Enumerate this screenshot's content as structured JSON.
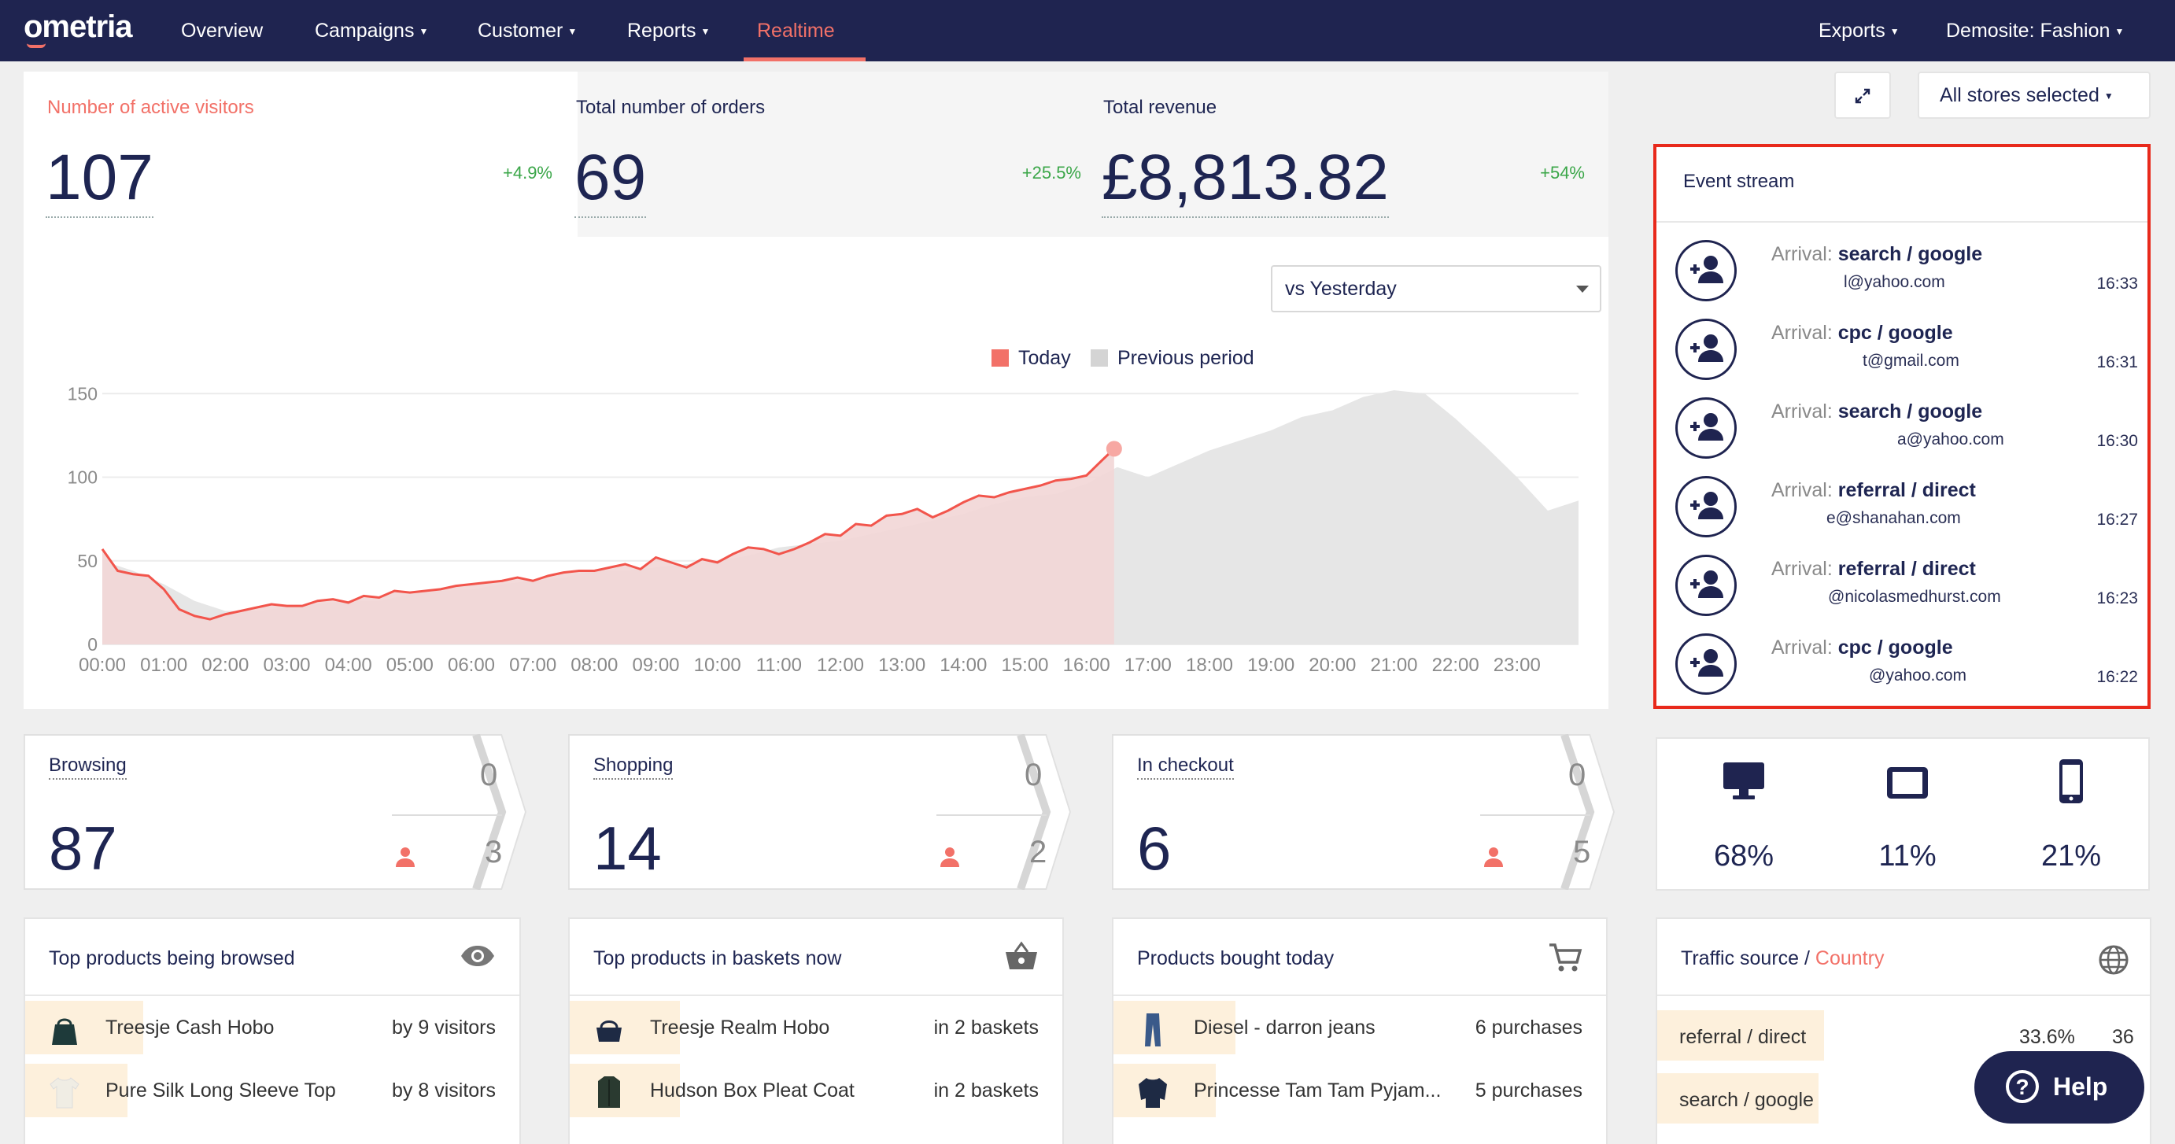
{
  "nav": {
    "logo": "ometria",
    "items": [
      {
        "label": "Overview",
        "caret": false,
        "active": false
      },
      {
        "label": "Campaigns",
        "caret": true,
        "active": false
      },
      {
        "label": "Customer",
        "caret": true,
        "active": false
      },
      {
        "label": "Reports",
        "caret": true,
        "active": false
      },
      {
        "label": "Realtime",
        "caret": false,
        "active": true
      }
    ],
    "right": [
      {
        "label": "Exports",
        "caret": true
      },
      {
        "label": "Demosite: Fashion",
        "caret": true
      }
    ]
  },
  "kpis": [
    {
      "label": "Number of active visitors",
      "value": "107",
      "delta": "+4.9%"
    },
    {
      "label": "Total number of orders",
      "value": "69",
      "delta": "+25.5%"
    },
    {
      "label": "Total revenue",
      "value": "£8,813.82",
      "delta": "+54%"
    }
  ],
  "legend": {
    "today": "Today",
    "previous": "Previous period"
  },
  "compare_select": {
    "value": "vs Yesterday"
  },
  "stores_select": {
    "label": "All stores selected"
  },
  "colors": {
    "nav": "#1f2450",
    "accent": "#f27168",
    "positive": "#3aa648",
    "today_fill": "#f2d6d6",
    "today_line": "#f2554c",
    "previous_fill": "#e6e6e6",
    "event_border": "#e8291b"
  },
  "chart_data": {
    "type": "area",
    "x_ticks": [
      "00:00",
      "01:00",
      "02:00",
      "03:00",
      "04:00",
      "05:00",
      "06:00",
      "07:00",
      "08:00",
      "09:00",
      "10:00",
      "11:00",
      "12:00",
      "13:00",
      "14:00",
      "15:00",
      "16:00",
      "17:00",
      "18:00",
      "19:00",
      "20:00",
      "21:00",
      "22:00",
      "23:00"
    ],
    "y_ticks": [
      0,
      50,
      100,
      150
    ],
    "ylim": [
      0,
      160
    ],
    "xlim": [
      0,
      24
    ],
    "series": [
      {
        "name": "Today",
        "x": [
          0,
          0.25,
          0.5,
          0.75,
          1,
          1.25,
          1.5,
          1.75,
          2,
          2.25,
          2.5,
          2.75,
          3,
          3.25,
          3.5,
          3.75,
          4,
          4.25,
          4.5,
          4.75,
          5,
          5.25,
          5.5,
          5.75,
          6,
          6.25,
          6.5,
          6.75,
          7,
          7.25,
          7.5,
          7.75,
          8,
          8.25,
          8.5,
          8.75,
          9,
          9.25,
          9.5,
          9.75,
          10,
          10.25,
          10.5,
          10.75,
          11,
          11.25,
          11.5,
          11.75,
          12,
          12.25,
          12.5,
          12.75,
          13,
          13.25,
          13.5,
          13.75,
          14,
          14.25,
          14.5,
          14.75,
          15,
          15.25,
          15.5,
          15.75,
          16,
          16.25,
          16.45
        ],
        "values": [
          57,
          44,
          42,
          41,
          33,
          21,
          17,
          15,
          18,
          20,
          22,
          24,
          23,
          23,
          26,
          27,
          25,
          29,
          28,
          32,
          31,
          32,
          33,
          35,
          36,
          37,
          38,
          40,
          38,
          41,
          43,
          44,
          44,
          46,
          48,
          45,
          52,
          49,
          46,
          51,
          49,
          54,
          58,
          57,
          54,
          57,
          61,
          66,
          65,
          72,
          71,
          77,
          78,
          81,
          76,
          80,
          85,
          89,
          88,
          91,
          93,
          95,
          98,
          99,
          101,
          110,
          117
        ]
      },
      {
        "name": "Previous period",
        "x": [
          0,
          0.5,
          1,
          1.5,
          2,
          2.5,
          3,
          3.5,
          4,
          4.5,
          5,
          5.5,
          6,
          6.5,
          7,
          7.5,
          8,
          8.5,
          9,
          9.5,
          10,
          10.5,
          11,
          11.5,
          12,
          12.5,
          13,
          13.5,
          14,
          14.5,
          15,
          15.5,
          16,
          16.5,
          17,
          17.5,
          18,
          18.5,
          19,
          19.5,
          20,
          20.5,
          21,
          21.5,
          22,
          22.5,
          23,
          23.5,
          24
        ],
        "values": [
          50,
          44,
          36,
          26,
          20,
          20,
          22,
          24,
          26,
          26,
          30,
          32,
          33,
          36,
          38,
          40,
          44,
          44,
          46,
          48,
          50,
          53,
          58,
          60,
          62,
          66,
          70,
          74,
          78,
          84,
          88,
          90,
          96,
          106,
          100,
          108,
          116,
          122,
          128,
          136,
          140,
          148,
          152,
          150,
          135,
          118,
          100,
          80,
          86
        ]
      }
    ]
  },
  "event_stream": {
    "title": "Event stream",
    "prefix": "Arrival:",
    "events": [
      {
        "source": "search / google",
        "email": "l@yahoo.com",
        "time": "16:33"
      },
      {
        "source": "cpc / google",
        "email": "t@gmail.com",
        "time": "16:31"
      },
      {
        "source": "search / google",
        "email": "a@yahoo.com",
        "time": "16:30"
      },
      {
        "source": "referral / direct",
        "email": "e@shanahan.com",
        "time": "16:27"
      },
      {
        "source": "referral / direct",
        "email": "@nicolasmedhurst.com",
        "time": "16:23"
      },
      {
        "source": "cpc / google",
        "email": "@yahoo.com",
        "time": "16:22"
      }
    ]
  },
  "stages": [
    {
      "label": "Browsing",
      "value": "87",
      "zero": "0",
      "count": "3"
    },
    {
      "label": "Shopping",
      "value": "14",
      "zero": "0",
      "count": "2"
    },
    {
      "label": "In checkout",
      "value": "6",
      "zero": "0",
      "count": "5"
    }
  ],
  "devices": [
    {
      "icon": "desktop-icon",
      "pct": "68%"
    },
    {
      "icon": "tablet-icon",
      "pct": "11%"
    },
    {
      "icon": "mobile-icon",
      "pct": "21%"
    }
  ],
  "top_browsed": {
    "title": "Top products being browsed",
    "items": [
      {
        "name": "Treesje Cash Hobo",
        "meta": "by 9 visitors"
      },
      {
        "name": "Pure Silk Long Sleeve Top",
        "meta": "by 8 visitors"
      }
    ]
  },
  "top_baskets": {
    "title": "Top products in baskets now",
    "items": [
      {
        "name": "Treesje Realm Hobo",
        "meta": "in 2 baskets"
      },
      {
        "name": "Hudson Box Pleat Coat",
        "meta": "in 2 baskets"
      }
    ]
  },
  "bought_today": {
    "title": "Products bought today",
    "items": [
      {
        "name": "Diesel - darron jeans",
        "meta": "6 purchases"
      },
      {
        "name": "Princesse Tam Tam Pyjam...",
        "meta": "5 purchases"
      }
    ]
  },
  "traffic": {
    "title": "Traffic source /",
    "title_accent": "Country",
    "items": [
      {
        "name": "referral / direct",
        "pct": "33.6%",
        "count": "36"
      },
      {
        "name": "search / google",
        "pct": "",
        "count": ""
      }
    ]
  },
  "help": {
    "label": "Help"
  }
}
